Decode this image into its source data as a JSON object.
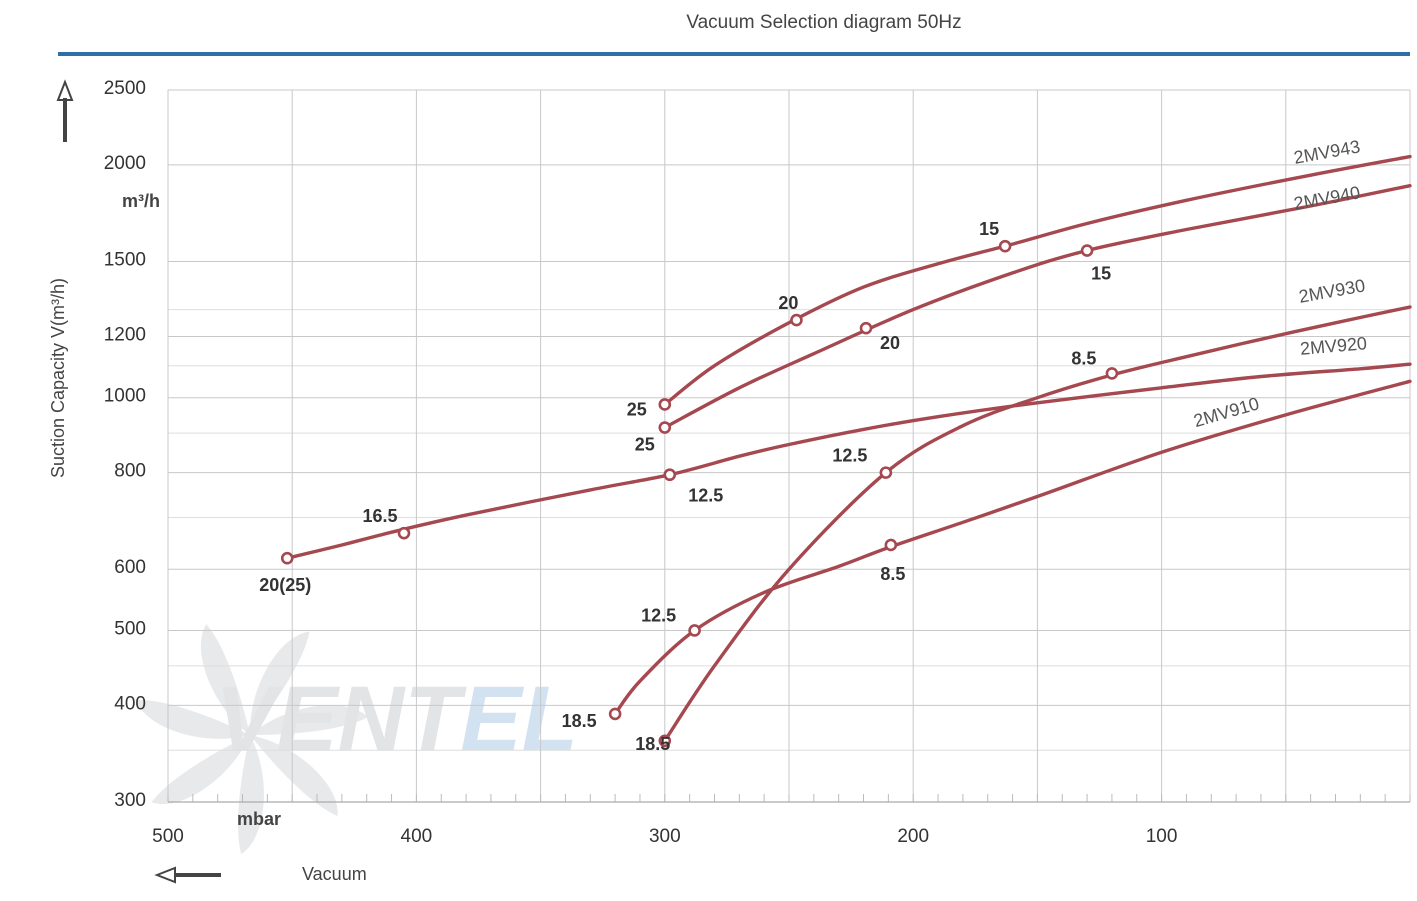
{
  "chart_data": {
    "type": "line",
    "title": "Vacuum Selection diagram 50Hz",
    "xlabel": "Vacuum",
    "x_unit": "mbar",
    "ylabel": "Suction Capacity V(m³/h)",
    "y_unit": "m³/h",
    "x_reversed": true,
    "y_scale": "log",
    "xlim": [
      500,
      0
    ],
    "ylim": [
      300,
      2500
    ],
    "x_ticks": [
      500,
      400,
      300,
      200,
      100
    ],
    "x_tick_labels": [
      "500",
      "400",
      "300",
      "200",
      "100"
    ],
    "y_ticks": [
      300,
      400,
      500,
      600,
      800,
      1000,
      1200,
      1500,
      2000,
      2500
    ],
    "y_tick_labels": [
      "300",
      "400",
      "500",
      "600",
      "800",
      "1000",
      "1200",
      "1500",
      "2000",
      "2500"
    ],
    "grid": true,
    "accent_color": "#a5484f",
    "header_rule_color": "#2e6fa6",
    "watermark": "VENTEL",
    "series": [
      {
        "name": "2MV943",
        "x": [
          300,
          280,
          250,
          220,
          190,
          160,
          130,
          90,
          40,
          0
        ],
        "y": [
          980,
          1100,
          1250,
          1390,
          1490,
          1580,
          1680,
          1800,
          1940,
          2050
        ],
        "markers": [
          {
            "x": 300,
            "y": 980,
            "label": "25"
          },
          {
            "x": 247,
            "y": 1260,
            "label": "20"
          },
          {
            "x": 163,
            "y": 1570,
            "label": "15"
          }
        ]
      },
      {
        "name": "2MV940",
        "x": [
          300,
          270,
          240,
          200,
          160,
          130,
          90,
          40,
          0
        ],
        "y": [
          915,
          1030,
          1140,
          1300,
          1450,
          1550,
          1650,
          1770,
          1880
        ],
        "markers": [
          {
            "x": 300,
            "y": 915,
            "label": "25"
          },
          {
            "x": 219,
            "y": 1230,
            "label": "20"
          },
          {
            "x": 130,
            "y": 1550,
            "label": "15"
          }
        ]
      },
      {
        "name": "2MV930",
        "x": [
          300,
          280,
          250,
          211,
          180,
          150,
          120,
          90,
          60,
          30,
          0
        ],
        "y": [
          360,
          450,
          600,
          800,
          920,
          1000,
          1070,
          1130,
          1190,
          1250,
          1310
        ],
        "markers": [
          {
            "x": 300,
            "y": 360,
            "label": "18.5"
          },
          {
            "x": 211,
            "y": 800,
            "label": "12.5"
          },
          {
            "x": 120,
            "y": 1075,
            "label": "8.5"
          }
        ]
      },
      {
        "name": "2MV920",
        "x": [
          452,
          430,
          410,
          380,
          330,
          298,
          270,
          250,
          220,
          190,
          150,
          100,
          60,
          20,
          0
        ],
        "y": [
          620,
          645,
          670,
          705,
          760,
          795,
          840,
          870,
          910,
          945,
          985,
          1030,
          1065,
          1090,
          1105
        ],
        "markers": [
          {
            "x": 452,
            "y": 620,
            "label": "20(25)"
          },
          {
            "x": 405,
            "y": 668,
            "label": "16.5"
          },
          {
            "x": 298,
            "y": 795,
            "label": "12.5"
          }
        ]
      },
      {
        "name": "2MV910",
        "x": [
          320,
          310,
          288,
          260,
          230,
          210,
          180,
          150,
          100,
          50,
          0
        ],
        "y": [
          390,
          430,
          500,
          560,
          605,
          640,
          690,
          745,
          850,
          950,
          1050
        ],
        "markers": [
          {
            "x": 320,
            "y": 390,
            "label": "18.5"
          },
          {
            "x": 288,
            "y": 500,
            "label": "12.5"
          },
          {
            "x": 209,
            "y": 645,
            "label": "8.5"
          }
        ]
      }
    ]
  }
}
